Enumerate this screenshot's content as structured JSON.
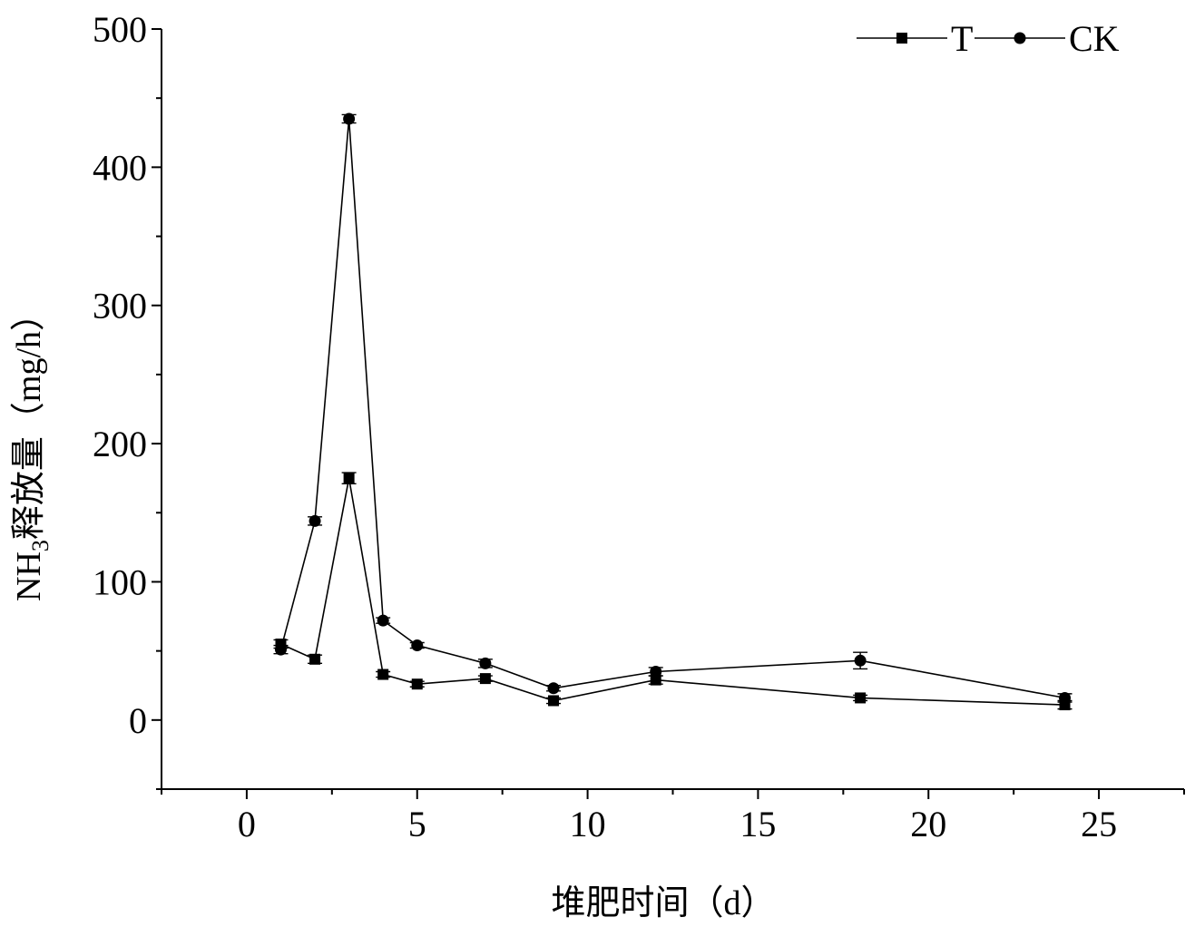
{
  "chart_data": {
    "type": "line",
    "title": "",
    "xlabel": "堆肥时间（d）",
    "ylabel_main": "NH",
    "ylabel_sub": "3",
    "ylabel_rest": "释放量（mg/h）",
    "xlim": [
      -2.5,
      27.5
    ],
    "ylim": [
      -50,
      500
    ],
    "xticks": [
      0,
      5,
      10,
      15,
      20,
      25
    ],
    "yticks": [
      0,
      100,
      200,
      300,
      400,
      500
    ],
    "legend_position": "top-right",
    "series": [
      {
        "name": "T",
        "marker": "square",
        "color": "#000000",
        "x": [
          1,
          2,
          3,
          4,
          5,
          7,
          9,
          12,
          18,
          24
        ],
        "y": [
          55,
          44,
          175,
          33,
          26,
          30,
          14,
          29,
          16,
          11
        ],
        "err": [
          3,
          3,
          4,
          2,
          2,
          2,
          2,
          3,
          2,
          3
        ]
      },
      {
        "name": "CK",
        "marker": "circle",
        "color": "#000000",
        "x": [
          1,
          2,
          3,
          4,
          5,
          7,
          9,
          12,
          18,
          24
        ],
        "y": [
          51,
          144,
          435,
          72,
          54,
          41,
          23,
          35,
          43,
          16
        ],
        "err": [
          3,
          3,
          3,
          2,
          2,
          3,
          2,
          3,
          6,
          3
        ]
      }
    ]
  }
}
